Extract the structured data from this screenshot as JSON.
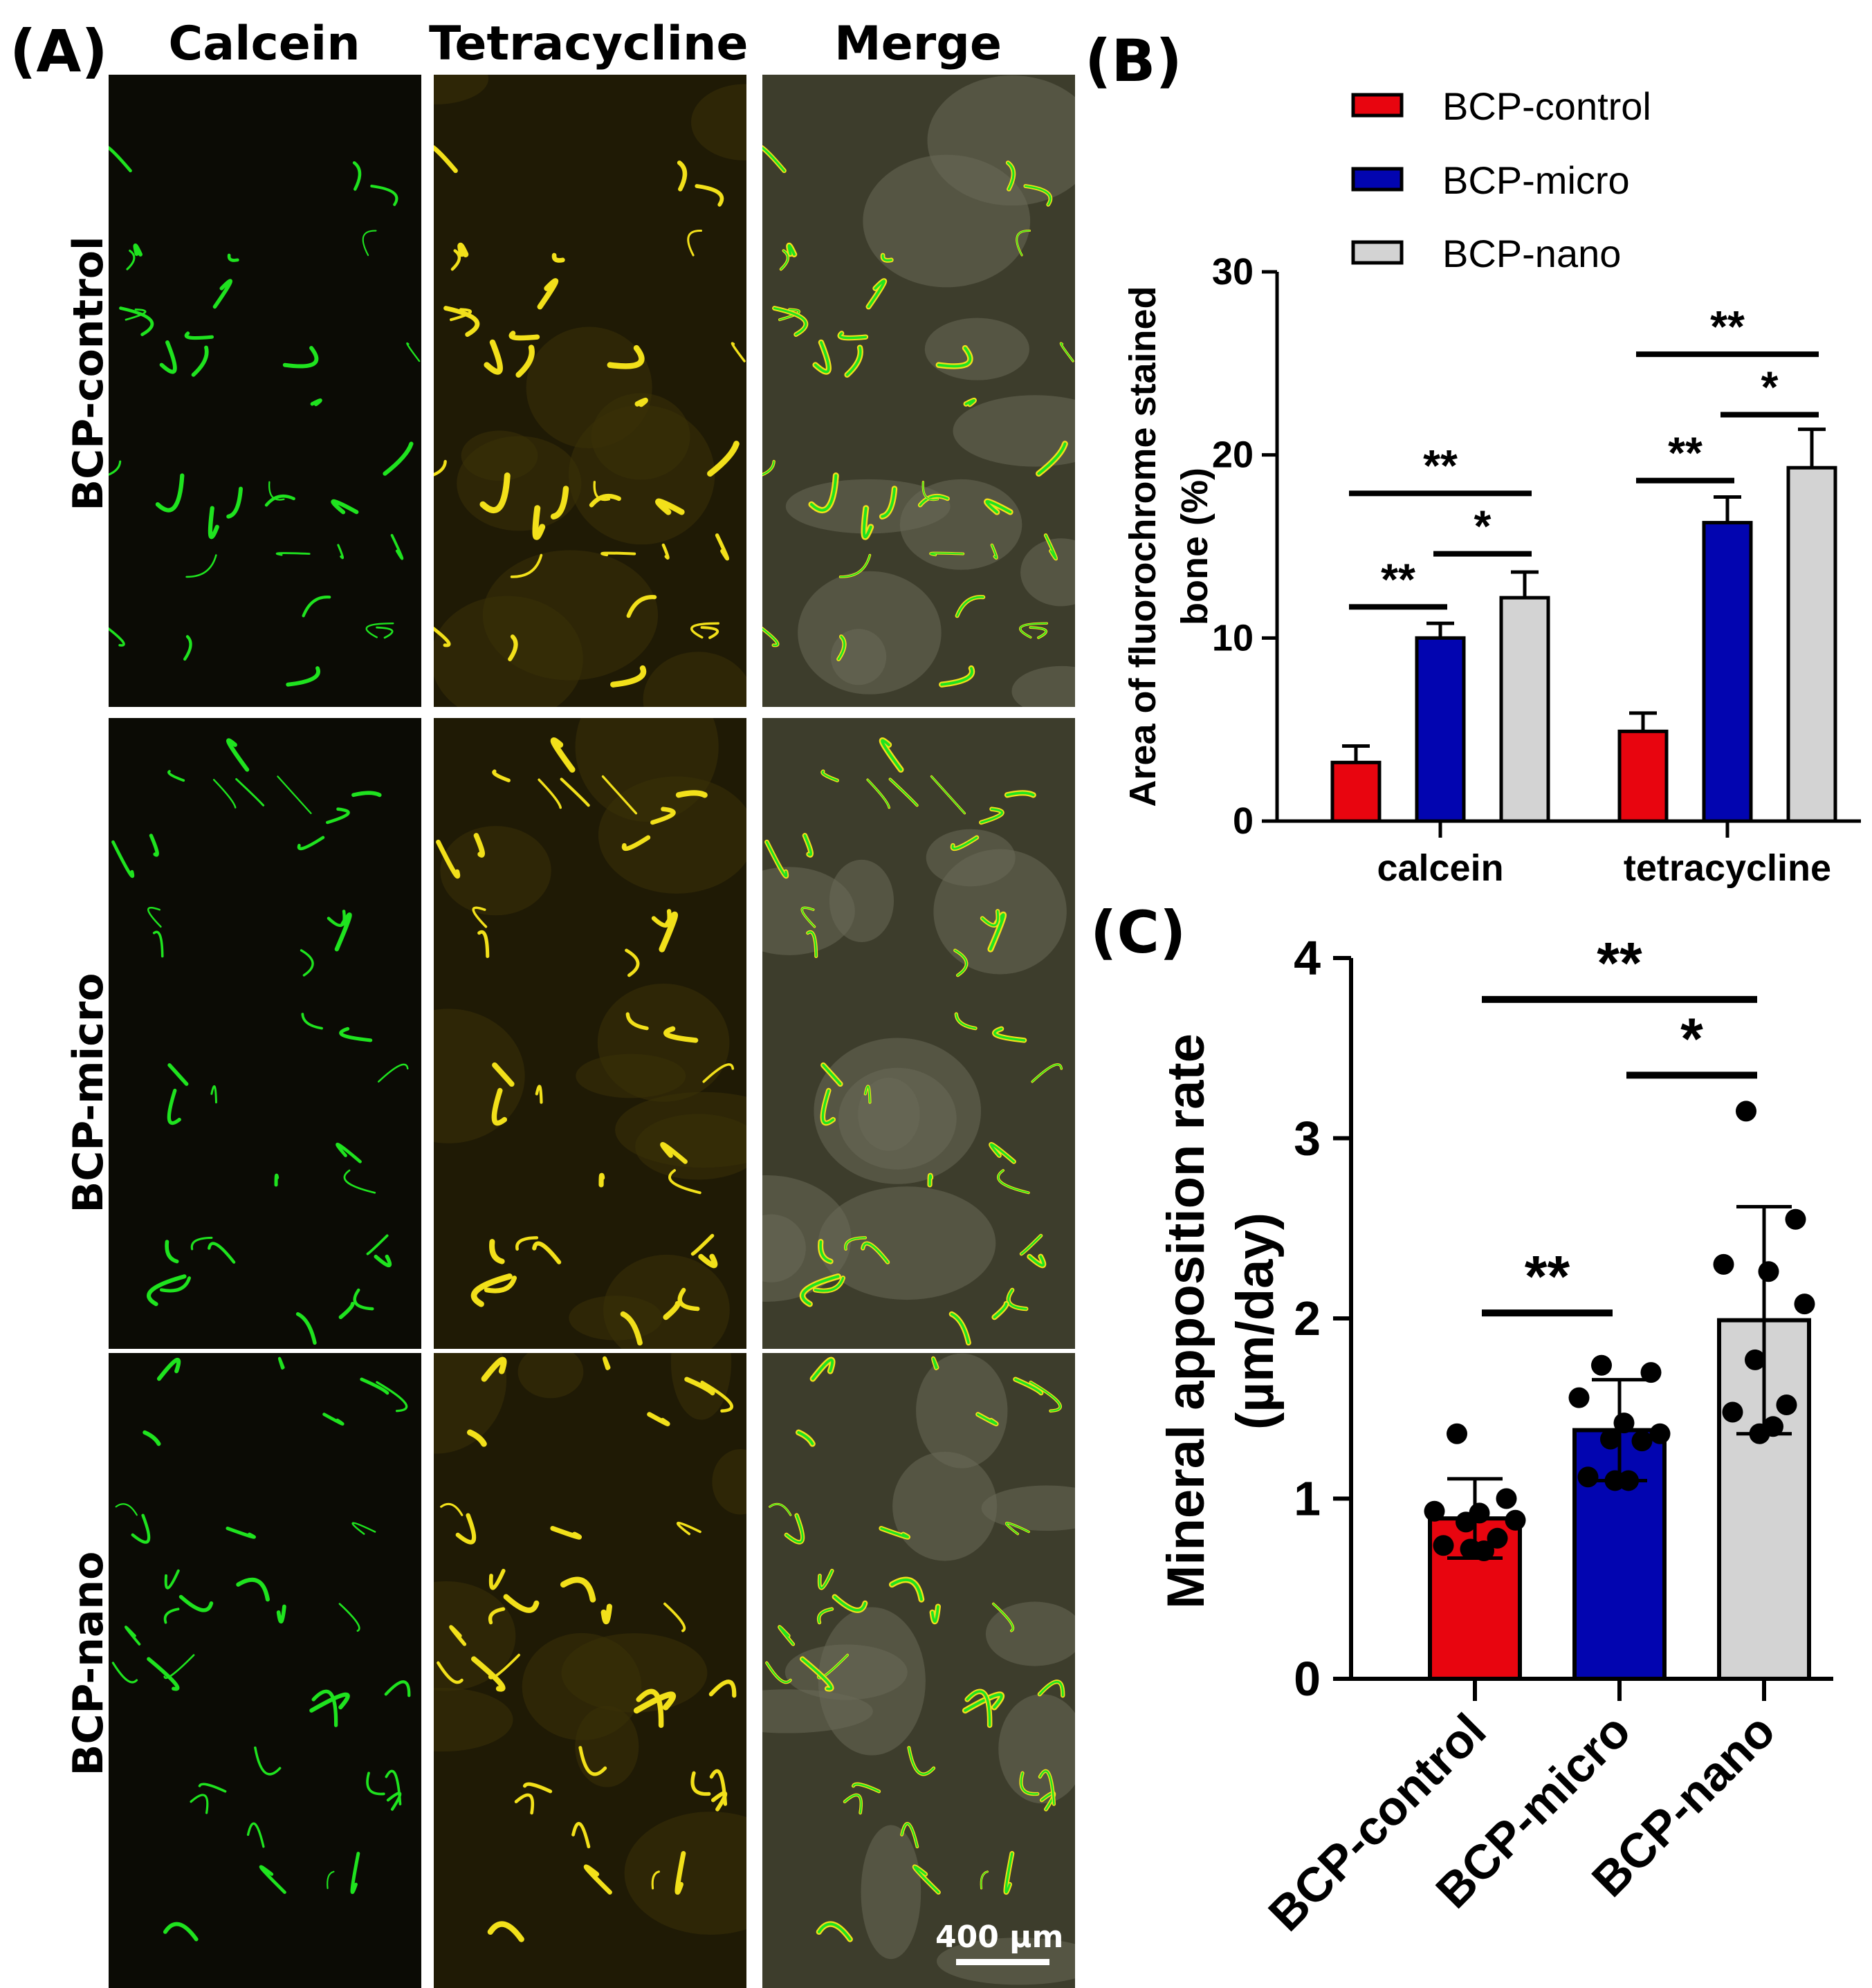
{
  "panel_a": {
    "label": "(A)",
    "columns": [
      "Calcein",
      "Tetracycline",
      "Merge"
    ],
    "rows": [
      "BCP-control",
      "BCP-micro",
      "BCP-nano"
    ],
    "scalebar": "400 µm",
    "colors": {
      "calcein": "#1fe31f",
      "tetracycline": "#f2e01a",
      "background": "#0b0b05"
    }
  },
  "panel_b": {
    "label": "(B)"
  },
  "panel_c": {
    "label": "(C)"
  },
  "chart_data": [
    {
      "id": "B",
      "type": "bar",
      "ylabel": "Area of fluorochrome stained bone (%)",
      "ylim": [
        0,
        30
      ],
      "yticks": [
        0,
        10,
        20,
        30
      ],
      "categories": [
        "calcein",
        "tetracycline"
      ],
      "legend": {
        "placement": "top",
        "entries": [
          "BCP-control",
          "BCP-micro",
          "BCP-nano"
        ]
      },
      "series": [
        {
          "name": "BCP-control",
          "color": "#e8050f",
          "values": [
            3.2,
            4.9
          ],
          "errors": [
            0.9,
            1.0
          ]
        },
        {
          "name": "BCP-micro",
          "color": "#0205b0",
          "values": [
            10.0,
            16.3
          ],
          "errors": [
            0.8,
            1.4
          ]
        },
        {
          "name": "BCP-nano",
          "color": "#d3d3d3",
          "values": [
            12.2,
            19.3
          ],
          "errors": [
            1.4,
            2.1
          ]
        }
      ],
      "significance": [
        {
          "group": 0,
          "from": 0,
          "to": 1,
          "label": "**",
          "y": 11.7
        },
        {
          "group": 0,
          "from": 1,
          "to": 2,
          "label": "*",
          "y": 14.6
        },
        {
          "group": 0,
          "from": 0,
          "to": 2,
          "label": "**",
          "y": 17.9
        },
        {
          "group": 1,
          "from": 0,
          "to": 1,
          "label": "**",
          "y": 18.6
        },
        {
          "group": 1,
          "from": 1,
          "to": 2,
          "label": "*",
          "y": 22.2
        },
        {
          "group": 1,
          "from": 0,
          "to": 2,
          "label": "**",
          "y": 25.5
        }
      ]
    },
    {
      "id": "C",
      "type": "bar",
      "ylabel_lines": [
        "Mineral apposition rate",
        "(µm/day)"
      ],
      "ylim": [
        0,
        4
      ],
      "yticks": [
        0,
        1,
        2,
        3,
        4
      ],
      "categories": [
        "BCP-control",
        "BCP-micro",
        "BCP-nano"
      ],
      "colors": [
        "#e8050f",
        "#0205b0",
        "#d3d3d3"
      ],
      "values": [
        0.89,
        1.38,
        1.99
      ],
      "errors": [
        0.22,
        0.28,
        0.63
      ],
      "points": [
        [
          1.36,
          1.0,
          0.93,
          0.92,
          0.88,
          0.87,
          0.78,
          0.74,
          0.71,
          0.72
        ],
        [
          1.74,
          1.7,
          1.56,
          1.42,
          1.36,
          1.33,
          1.32,
          1.12,
          1.1,
          1.1
        ],
        [
          3.15,
          2.55,
          2.3,
          2.26,
          2.08,
          1.77,
          1.52,
          1.48,
          1.4,
          1.36
        ]
      ],
      "significance": [
        {
          "from": 0,
          "to": 1,
          "label": "**",
          "y": 2.03
        },
        {
          "from": 1,
          "to": 2,
          "label": "*",
          "y": 3.35
        },
        {
          "from": 0,
          "to": 2,
          "label": "**",
          "y": 3.77
        }
      ]
    }
  ]
}
